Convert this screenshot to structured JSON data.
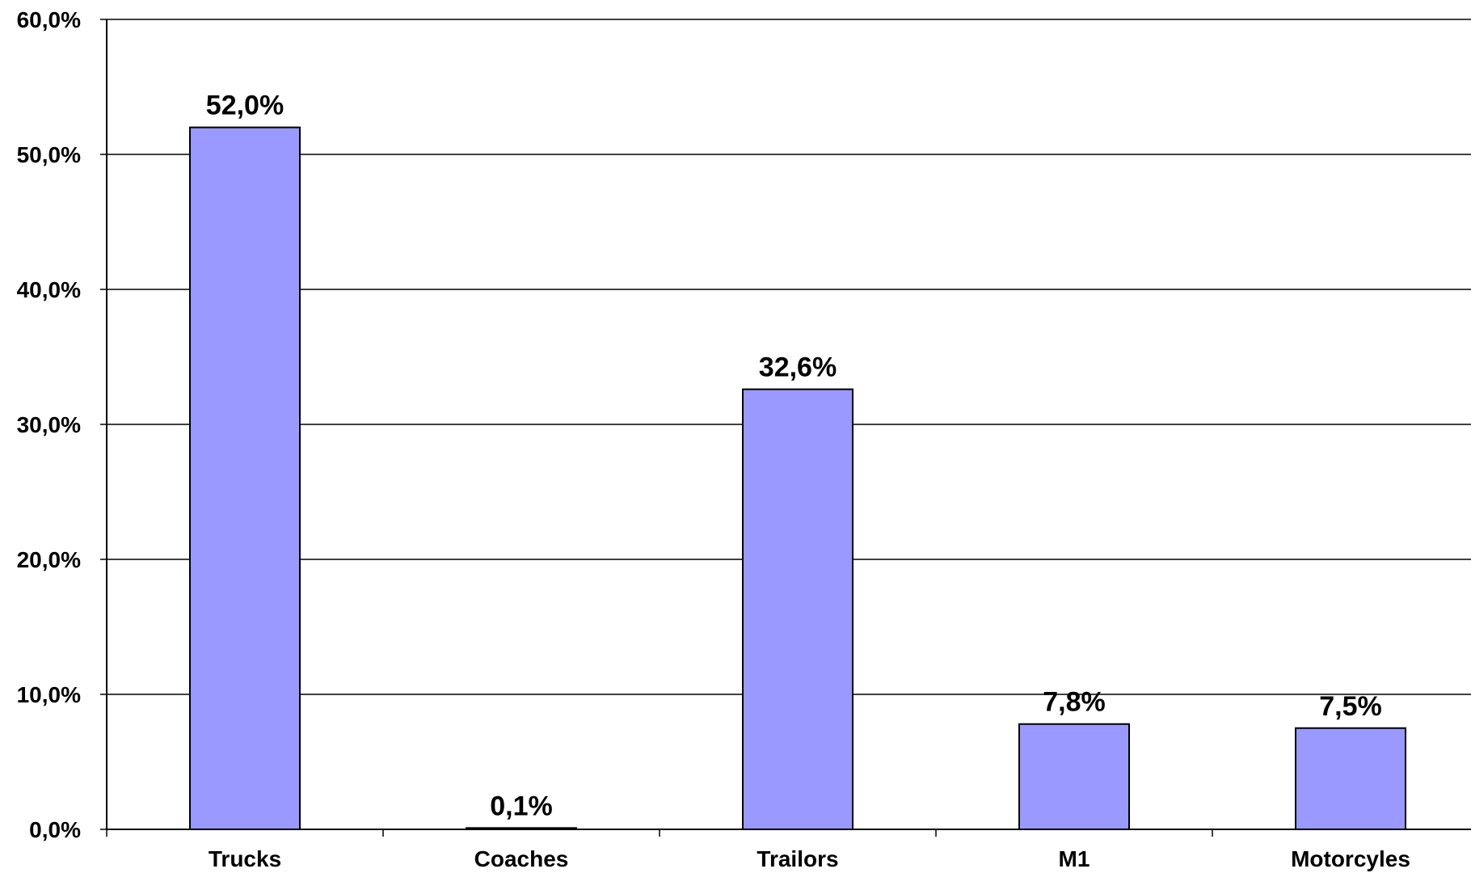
{
  "chart_data": {
    "type": "bar",
    "title": "",
    "xlabel": "",
    "ylabel": "",
    "categories": [
      "Trucks",
      "Coaches",
      "Trailors",
      "M1",
      "Motorcyles"
    ],
    "values": [
      52.0,
      0.1,
      32.6,
      7.8,
      7.5
    ],
    "data_labels": [
      "52,0%",
      "0,1%",
      "32,6%",
      "7,8%",
      "7,5%"
    ],
    "ylim": [
      0,
      60
    ],
    "yticks": [
      0,
      10,
      20,
      30,
      40,
      50,
      60
    ],
    "ytick_labels": [
      "0,0%",
      "10,0%",
      "20,0%",
      "30,0%",
      "40,0%",
      "50,0%",
      "60,0%"
    ],
    "grid": true,
    "legend": "none",
    "colors": {
      "bar_fill": "#9999FF",
      "bar_stroke": "#000000",
      "grid": "#000000",
      "axis": "#000000"
    }
  }
}
